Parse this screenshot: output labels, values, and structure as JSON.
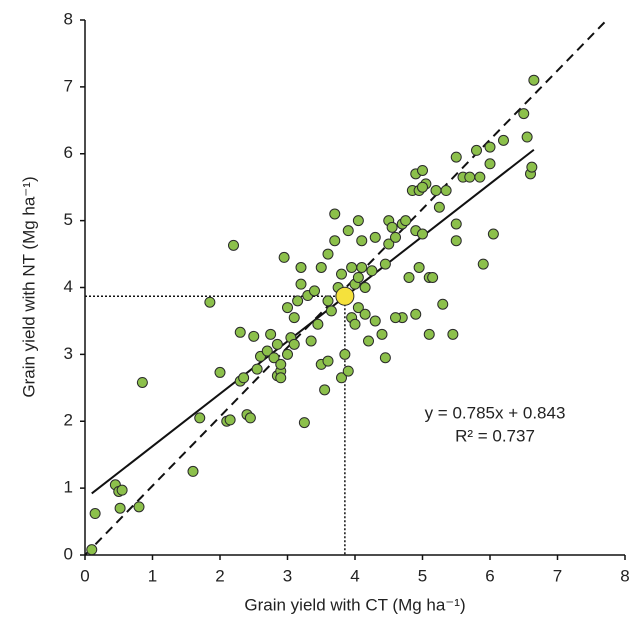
{
  "chart_data": {
    "type": "scatter",
    "x_label": "Grain yield with CT (Mg ha⁻¹)",
    "y_label": "Grain yield with NT (Mg ha⁻¹)",
    "xlim": [
      0,
      8
    ],
    "ylim": [
      0,
      8
    ],
    "xticks": [
      0,
      1,
      2,
      3,
      4,
      5,
      6,
      7,
      8
    ],
    "yticks": [
      0,
      1,
      2,
      3,
      4,
      5,
      6,
      7,
      8
    ],
    "equation": "y = 0.785x + 0.843",
    "r_squared": "R² = 0.737",
    "color": "#8cc04b",
    "x": [
      0.1,
      0.15,
      0.45,
      0.5,
      0.55,
      0.52,
      0.8,
      0.85,
      1.6,
      1.7,
      1.85,
      2.0,
      2.1,
      2.15,
      2.2,
      2.3,
      2.35,
      2.3,
      2.4,
      2.45,
      2.5,
      2.55,
      2.6,
      2.7,
      2.75,
      2.8,
      2.85,
      2.85,
      2.9,
      2.9,
      2.95,
      3.0,
      3.0,
      3.05,
      3.1,
      3.15,
      3.2,
      3.2,
      3.25,
      3.3,
      3.35,
      3.4,
      3.45,
      3.5,
      3.5,
      3.55,
      3.6,
      3.6,
      3.65,
      3.7,
      3.75,
      3.8,
      3.8,
      3.85,
      3.9,
      3.9,
      3.95,
      4.0,
      4.0,
      4.05,
      4.05,
      4.1,
      4.1,
      4.15,
      4.15,
      4.2,
      4.3,
      4.3,
      4.4,
      4.45,
      4.45,
      4.5,
      4.5,
      4.55,
      4.6,
      4.7,
      4.7,
      4.75,
      4.8,
      4.85,
      4.9,
      4.9,
      4.9,
      4.95,
      5.0,
      5.0,
      5.05,
      5.1,
      5.1,
      5.15,
      5.2,
      5.25,
      5.3,
      5.35,
      5.45,
      5.5,
      5.5,
      5.5,
      5.6,
      5.7,
      5.8,
      5.85,
      5.9,
      6.0,
      6.0,
      6.05,
      6.2,
      6.5,
      6.55,
      6.6,
      6.62,
      6.65,
      4.6,
      3.95,
      4.05,
      3.6,
      4.25,
      2.9,
      3.1,
      3.7,
      4.95,
      5.0
    ],
    "values": [
      0.08,
      0.62,
      1.05,
      0.95,
      0.97,
      0.7,
      0.72,
      2.58,
      1.25,
      2.05,
      3.78,
      2.73,
      2.0,
      2.02,
      4.63,
      2.6,
      2.65,
      3.33,
      2.1,
      2.05,
      3.27,
      2.78,
      2.97,
      3.05,
      3.3,
      2.95,
      2.68,
      3.15,
      2.75,
      2.85,
      4.45,
      3.0,
      3.7,
      3.25,
      3.15,
      3.8,
      4.05,
      4.3,
      1.98,
      3.88,
      3.2,
      3.95,
      3.45,
      2.85,
      4.3,
      2.47,
      4.5,
      3.8,
      3.65,
      5.1,
      4.0,
      2.65,
      4.2,
      3.0,
      4.85,
      2.75,
      3.55,
      3.45,
      4.05,
      5.0,
      3.7,
      4.7,
      4.3,
      3.6,
      4.0,
      3.2,
      4.75,
      3.5,
      3.3,
      4.35,
      2.95,
      4.65,
      5.0,
      4.9,
      4.75,
      3.55,
      4.95,
      5.0,
      4.15,
      5.45,
      4.85,
      3.6,
      5.7,
      4.3,
      4.8,
      5.75,
      5.55,
      3.3,
      4.15,
      4.15,
      5.45,
      5.2,
      3.75,
      5.45,
      3.3,
      4.95,
      5.95,
      4.7,
      5.65,
      5.65,
      6.05,
      5.65,
      4.35,
      6.1,
      5.85,
      4.8,
      6.2,
      6.6,
      6.25,
      5.7,
      5.8,
      7.1,
      3.55,
      4.3,
      4.15,
      2.9,
      4.25,
      2.65,
      3.55,
      4.7,
      5.45,
      5.5
    ],
    "mean": {
      "x": 3.85,
      "y": 3.87,
      "color": "#f5e13c"
    },
    "fit_line": {
      "x": [
        0.1,
        6.65
      ],
      "y": [
        0.92,
        6.06
      ]
    },
    "one_to_one": {
      "x": [
        0,
        7.73
      ],
      "y": [
        0,
        8
      ]
    }
  }
}
